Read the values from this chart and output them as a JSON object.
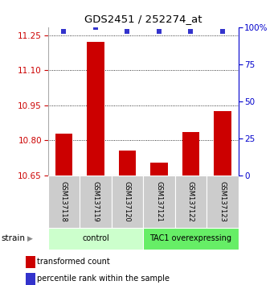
{
  "title": "GDS2451 / 252274_at",
  "samples": [
    "GSM137118",
    "GSM137119",
    "GSM137120",
    "GSM137121",
    "GSM137122",
    "GSM137123"
  ],
  "bar_values": [
    10.83,
    11.22,
    10.755,
    10.705,
    10.835,
    10.925
  ],
  "percentile_values": [
    97,
    100,
    97,
    97,
    97,
    97
  ],
  "y_min": 10.65,
  "y_max": 11.285,
  "y_ticks": [
    10.65,
    10.8,
    10.95,
    11.1,
    11.25
  ],
  "y_right_ticks": [
    0,
    25,
    50,
    75,
    100
  ],
  "bar_color": "#cc0000",
  "dot_color": "#3333cc",
  "groups": [
    {
      "label": "control",
      "samples": [
        0,
        1,
        2
      ],
      "color": "#ccffcc"
    },
    {
      "label": "TAC1 overexpressing",
      "samples": [
        3,
        4,
        5
      ],
      "color": "#66ee66"
    }
  ],
  "group_label": "strain",
  "legend_bar_label": "transformed count",
  "legend_dot_label": "percentile rank within the sample",
  "left_axis_color": "#cc0000",
  "right_axis_color": "#0000cc",
  "sample_box_color": "#cccccc",
  "grid_color": "#000000"
}
